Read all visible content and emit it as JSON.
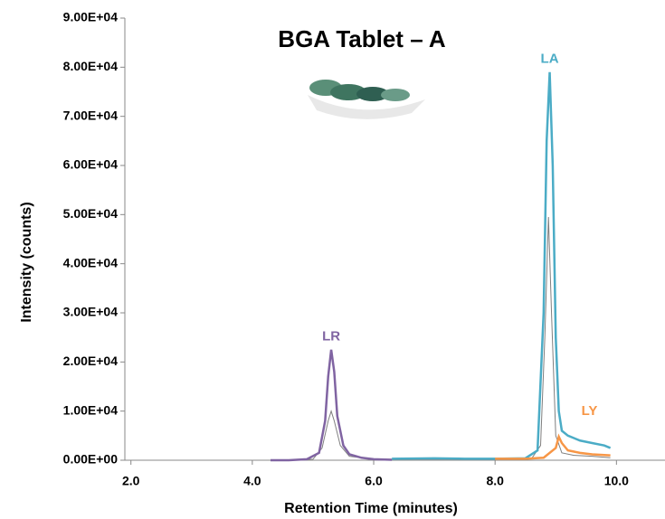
{
  "chart_data": {
    "type": "line",
    "title": "BGA Tablet – A",
    "xlabel": "Retention Time (minutes)",
    "ylabel": "Intensity (counts)",
    "xlim": [
      1.9,
      10.8
    ],
    "ylim": [
      0,
      90000
    ],
    "xticks": [
      {
        "value": 2,
        "label": "2.0"
      },
      {
        "value": 4,
        "label": "4.0"
      },
      {
        "value": 6,
        "label": "6.0"
      },
      {
        "value": 8,
        "label": "8.0"
      },
      {
        "value": 10,
        "label": "10.0"
      }
    ],
    "yticks": [
      {
        "value": 0,
        "label": "0.00E+00"
      },
      {
        "value": 10000,
        "label": "1.00E+04"
      },
      {
        "value": 20000,
        "label": "2.00E+04"
      },
      {
        "value": 30000,
        "label": "3.00E+04"
      },
      {
        "value": 40000,
        "label": "4.00E+04"
      },
      {
        "value": 50000,
        "label": "5.00E+04"
      },
      {
        "value": 60000,
        "label": "6.00E+04"
      },
      {
        "value": 70000,
        "label": "7.00E+04"
      },
      {
        "value": 80000,
        "label": "8.00E+04"
      },
      {
        "value": 90000,
        "label": "9.00E+04"
      }
    ],
    "grid": false,
    "series": [
      {
        "color": "#7f7f7f",
        "x": [
          4.3,
          5.0,
          5.15,
          5.25,
          5.3,
          5.35,
          5.45,
          5.6,
          6.0,
          7.0,
          8.0,
          8.6,
          8.75,
          8.82,
          8.88,
          8.93,
          9.0,
          9.1,
          9.3,
          9.6,
          9.9
        ],
        "values": [
          0,
          200,
          2500,
          8000,
          10000,
          8000,
          3000,
          800,
          200,
          200,
          200,
          300,
          3000,
          25000,
          49500,
          30000,
          5000,
          1500,
          1000,
          800,
          500
        ]
      },
      {
        "name": "LR",
        "color": "#8064a2",
        "x": [
          4.3,
          4.6,
          4.9,
          5.1,
          5.2,
          5.25,
          5.3,
          5.35,
          5.4,
          5.5,
          5.6,
          5.8,
          6.0,
          6.3
        ],
        "values": [
          0,
          0,
          200,
          1500,
          8000,
          17000,
          22500,
          18000,
          9000,
          3000,
          1200,
          500,
          200,
          100
        ]
      },
      {
        "name": "LA",
        "color": "#4bacc6",
        "x": [
          6.3,
          7.0,
          7.5,
          8.0,
          8.5,
          8.7,
          8.8,
          8.85,
          8.9,
          8.95,
          9.0,
          9.05,
          9.1,
          9.2,
          9.4,
          9.6,
          9.8,
          9.9
        ],
        "values": [
          300,
          400,
          300,
          300,
          400,
          2000,
          30000,
          65000,
          79000,
          60000,
          25000,
          10000,
          6000,
          5000,
          4000,
          3500,
          3000,
          2500
        ]
      },
      {
        "name": "LY",
        "color": "#f79646",
        "x": [
          8.0,
          8.5,
          8.8,
          9.0,
          9.05,
          9.1,
          9.2,
          9.4,
          9.6,
          9.9
        ],
        "values": [
          300,
          300,
          500,
          2500,
          4800,
          3500,
          2000,
          1500,
          1200,
          1000
        ]
      }
    ]
  }
}
